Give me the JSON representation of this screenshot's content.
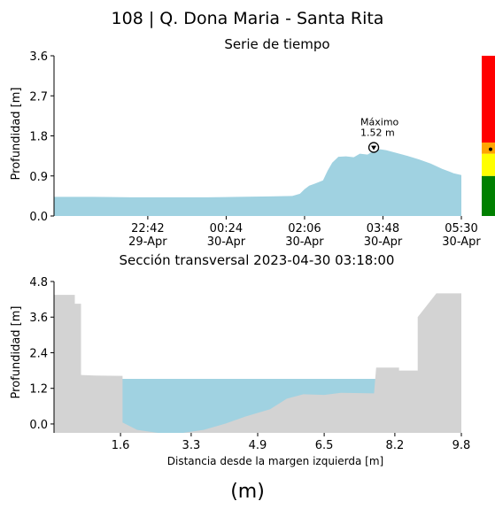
{
  "header": {
    "title": "108 | Q. Dona Maria - Santa Rita",
    "panel_label": "(m)"
  },
  "chart_data": [
    {
      "type": "area",
      "title": "Serie de tiempo",
      "ylabel": "Profundidad [m]",
      "xlabel": "",
      "ylim": [
        0,
        3.6
      ],
      "yticks": [
        "0.0",
        "0.9",
        "1.8",
        "2.7",
        "3.6"
      ],
      "xlim": [
        "29-Apr 20:40",
        "30-Apr 05:30"
      ],
      "xticks": [
        {
          "time": "29-Apr 22:42",
          "line1": "22:42",
          "line2": "29-Apr"
        },
        {
          "time": "30-Apr 00:24",
          "line1": "00:24",
          "line2": "30-Apr"
        },
        {
          "time": "30-Apr 02:06",
          "line1": "02:06",
          "line2": "30-Apr"
        },
        {
          "time": "30-Apr 03:48",
          "line1": "03:48",
          "line2": "30-Apr"
        },
        {
          "time": "30-Apr 05:30",
          "line1": "05:30",
          "line2": "30-Apr"
        }
      ],
      "series": [
        {
          "color": "#a0d2e1",
          "points": [
            [
              "29-Apr 20:40",
              0.43
            ],
            [
              "29-Apr 21:30",
              0.43
            ],
            [
              "29-Apr 22:20",
              0.42
            ],
            [
              "29-Apr 23:10",
              0.42
            ],
            [
              "30-Apr 00:00",
              0.42
            ],
            [
              "30-Apr 00:40",
              0.43
            ],
            [
              "30-Apr 01:20",
              0.44
            ],
            [
              "30-Apr 01:50",
              0.45
            ],
            [
              "30-Apr 02:00",
              0.5
            ],
            [
              "30-Apr 02:06",
              0.6
            ],
            [
              "30-Apr 02:12",
              0.68
            ],
            [
              "30-Apr 02:20",
              0.73
            ],
            [
              "30-Apr 02:30",
              0.8
            ],
            [
              "30-Apr 02:36",
              1.02
            ],
            [
              "30-Apr 02:42",
              1.2
            ],
            [
              "30-Apr 02:50",
              1.33
            ],
            [
              "30-Apr 03:00",
              1.34
            ],
            [
              "30-Apr 03:10",
              1.32
            ],
            [
              "30-Apr 03:18",
              1.4
            ],
            [
              "30-Apr 03:28",
              1.38
            ],
            [
              "30-Apr 03:36",
              1.47
            ],
            [
              "30-Apr 03:44",
              1.5
            ],
            [
              "30-Apr 03:52",
              1.48
            ],
            [
              "30-Apr 04:05",
              1.42
            ],
            [
              "30-Apr 04:20",
              1.35
            ],
            [
              "30-Apr 04:35",
              1.27
            ],
            [
              "30-Apr 04:50",
              1.18
            ],
            [
              "30-Apr 05:05",
              1.06
            ],
            [
              "30-Apr 05:20",
              0.96
            ],
            [
              "30-Apr 05:30",
              0.92
            ]
          ]
        }
      ],
      "annotation": {
        "line1": "Máximo",
        "line2": "1.52 m",
        "time": "30-Apr 03:36",
        "value": 1.52
      },
      "alert_bar": {
        "segments": [
          {
            "from": 0,
            "to": 0.9,
            "color": "#008000"
          },
          {
            "from": 0.9,
            "to": 1.4,
            "color": "#ffff00"
          },
          {
            "from": 1.4,
            "to": 1.65,
            "color": "#ffa500"
          },
          {
            "from": 1.65,
            "to": 3.6,
            "color": "#ff0000"
          }
        ],
        "marker_value": 1.52
      }
    },
    {
      "type": "area",
      "title": "Sección transversal 2023-04-30 03:18:00",
      "xlabel": "Distancia desde la margen izquierda [m]",
      "ylabel": "Profundidad [m]",
      "xlim": [
        0,
        9.8
      ],
      "ylim": [
        -0.3,
        4.8
      ],
      "xticks": [
        "1.6",
        "3.3",
        "4.9",
        "6.5",
        "8.2",
        "9.8"
      ],
      "yticks": [
        "0.0",
        "1.2",
        "2.4",
        "3.6",
        "4.8"
      ],
      "water_level": 1.52,
      "water_color": "#a0d2e1",
      "ground_color": "#d3d3d3",
      "ground_profile": [
        [
          0,
          4.35
        ],
        [
          0.5,
          4.35
        ],
        [
          0.5,
          4.05
        ],
        [
          0.65,
          4.05
        ],
        [
          0.65,
          1.65
        ],
        [
          1.0,
          1.63
        ],
        [
          1.65,
          1.62
        ],
        [
          1.65,
          0.05
        ],
        [
          2.0,
          -0.2
        ],
        [
          2.5,
          -0.3
        ],
        [
          3.1,
          -0.3
        ],
        [
          3.6,
          -0.2
        ],
        [
          4.1,
          0.0
        ],
        [
          4.6,
          0.25
        ],
        [
          5.2,
          0.5
        ],
        [
          5.6,
          0.85
        ],
        [
          6.0,
          1.0
        ],
        [
          6.5,
          0.98
        ],
        [
          6.9,
          1.05
        ],
        [
          7.7,
          1.03
        ],
        [
          7.75,
          1.9
        ],
        [
          8.3,
          1.9
        ],
        [
          8.3,
          1.8
        ],
        [
          8.75,
          1.8
        ],
        [
          8.75,
          3.6
        ],
        [
          9.2,
          4.4
        ],
        [
          9.8,
          4.4
        ]
      ]
    }
  ]
}
